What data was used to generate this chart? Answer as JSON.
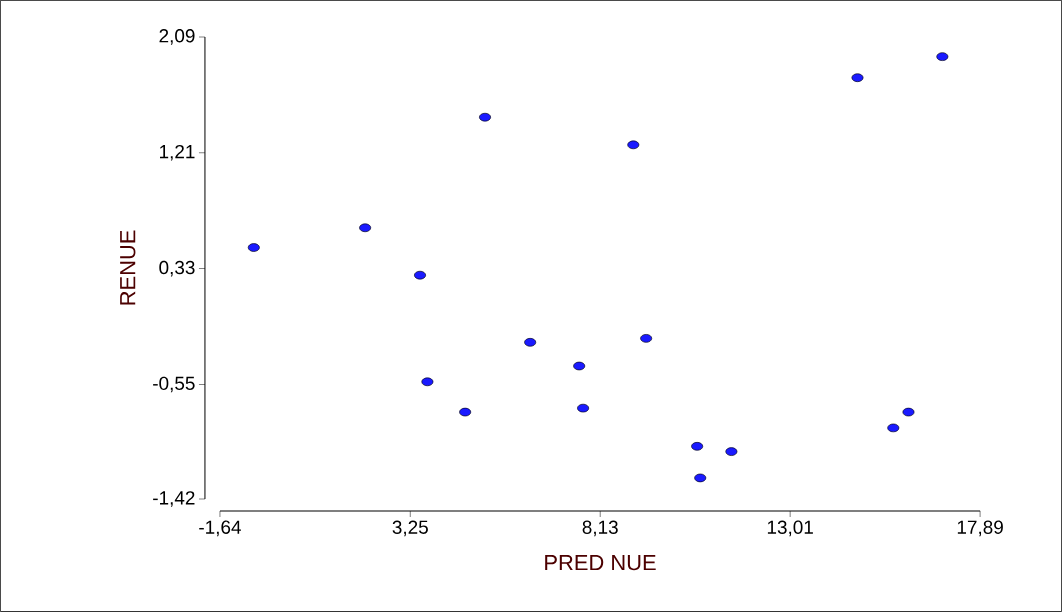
{
  "chart_data": {
    "type": "scatter",
    "xlabel": "PRED NUE",
    "ylabel": "RENUE",
    "x": [
      -0.77,
      2.09,
      3.5,
      3.69,
      4.66,
      5.17,
      6.33,
      7.59,
      7.69,
      8.98,
      9.31,
      10.62,
      10.7,
      11.5,
      14.74,
      15.66,
      16.05,
      16.92
    ],
    "series": [
      {
        "color": "#1a1aff",
        "values": [
          0.49,
          0.64,
          0.28,
          -0.53,
          -0.76,
          1.48,
          -0.23,
          -0.41,
          -0.73,
          1.27,
          -0.2,
          -1.02,
          -1.26,
          -1.06,
          1.78,
          -0.88,
          -0.76,
          1.94
        ]
      }
    ],
    "xlim": [
      -1.64,
      17.89
    ],
    "ylim": [
      -1.42,
      2.09
    ],
    "xticks": [
      {
        "value": -1.64,
        "label": "-1,64"
      },
      {
        "value": 3.25,
        "label": "3,25"
      },
      {
        "value": 8.13,
        "label": "8,13"
      },
      {
        "value": 13.01,
        "label": "13,01"
      },
      {
        "value": 17.89,
        "label": "17,89"
      }
    ],
    "yticks": [
      {
        "value": -1.42,
        "label": "-1,42"
      },
      {
        "value": -0.55,
        "label": "-0,55"
      },
      {
        "value": 0.33,
        "label": "0,33"
      },
      {
        "value": 1.21,
        "label": "1,21"
      },
      {
        "value": 2.09,
        "label": "2,09"
      }
    ],
    "grid": false
  }
}
